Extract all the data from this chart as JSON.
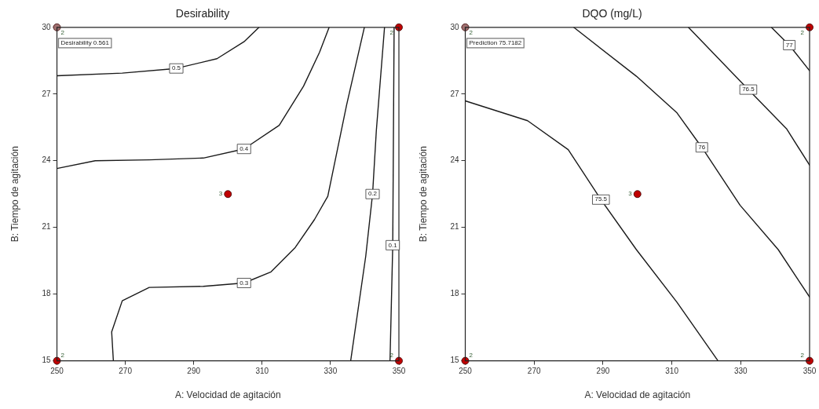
{
  "chart_data": [
    {
      "type": "line",
      "title": "Desirability",
      "xlabel": "A: Velocidad de agitación",
      "ylabel": "B: Tiempo de agitación",
      "xlim": [
        250,
        350
      ],
      "xticks": [
        250,
        270,
        290,
        310,
        330,
        350
      ],
      "ylim": [
        15,
        30
      ],
      "yticks": [
        15,
        18,
        21,
        24,
        27,
        30
      ],
      "grid": false,
      "legend": false,
      "line_style": "solid",
      "series": [
        {
          "name": "0.5",
          "color": "#1a1a1a",
          "x": [
            250,
            269.1,
            284.9,
            296.8,
            304.7,
            309.1
          ],
          "values": [
            27.82,
            27.94,
            28.15,
            28.59,
            29.35,
            30
          ]
        },
        {
          "name": "0.4",
          "color": "#1a1a1a",
          "x": [
            250,
            261.2,
            277,
            292.8,
            304.7,
            315,
            322.1,
            326.8,
            329.6
          ],
          "values": [
            23.65,
            24.0,
            24.04,
            24.12,
            24.53,
            25.59,
            27.35,
            28.88,
            30
          ]
        },
        {
          "name": "0.3",
          "color": "#1a1a1a",
          "x": [
            266.5,
            266.0,
            269.1,
            277,
            292.8,
            304.7,
            312.6,
            319.7,
            325.3,
            329.2,
            334.7,
            339.9
          ],
          "values": [
            15,
            16.3,
            17.7,
            18.3,
            18.35,
            18.5,
            19.0,
            20.1,
            21.35,
            22.4,
            26.5,
            30
          ]
        },
        {
          "name": "0.2",
          "color": "#1a1a1a",
          "x": [
            335.9,
            340.3,
            342.3,
            343.4,
            345.8
          ],
          "values": [
            15,
            19.7,
            22.5,
            25.35,
            30
          ]
        },
        {
          "name": "0.1",
          "color": "#1a1a1a",
          "x": [
            347.4,
            348.2,
            348.6
          ],
          "values": [
            15,
            20.2,
            30
          ]
        },
        {
          "type": "scatter",
          "marker": "circle",
          "x": [
            250,
            250,
            350,
            350,
            300
          ],
          "values": [
            30,
            15,
            15,
            30,
            22.5
          ],
          "colors": [
            "#a07070",
            "#c00000",
            "#c00000",
            "#c00000",
            "#c00000"
          ]
        }
      ],
      "annotations": [
        {
          "text": "2",
          "x": 250,
          "y": 30
        },
        {
          "text": "2",
          "x": 250,
          "y": 15
        },
        {
          "text": "2",
          "x": 350,
          "y": 15
        },
        {
          "text": "2",
          "x": 350,
          "y": 30
        },
        {
          "text": "3",
          "x": 300,
          "y": 22.5
        },
        "Desirability 0.561"
      ]
    },
    {
      "type": "line",
      "title": "DQO (mg/L)",
      "xlabel": "A: Velocidad de agitación",
      "ylabel": "B: Tiempo de agitación",
      "xlim": [
        250,
        350
      ],
      "xticks": [
        250,
        270,
        290,
        310,
        330,
        350
      ],
      "ylim": [
        15,
        30
      ],
      "yticks": [
        15,
        18,
        21,
        24,
        27,
        30
      ],
      "grid": false,
      "legend": false,
      "line_style": "solid",
      "series": [
        {
          "name": "75.5",
          "color": "#1a1a1a",
          "x": [
            250,
            268.1,
            279.9,
            289.4,
            299.7,
            311.5,
            323.4
          ],
          "values": [
            26.69,
            25.8,
            24.5,
            22.25,
            20.0,
            17.63,
            15
          ]
        },
        {
          "name": "76",
          "color": "#1a1a1a",
          "x": [
            281.5,
            299.7,
            311.5,
            318.7,
            329.8,
            340.9,
            350
          ],
          "values": [
            30,
            27.8,
            26.15,
            24.6,
            22.0,
            20.0,
            17.87
          ]
        },
        {
          "name": "76.5",
          "color": "#1a1a1a",
          "x": [
            314.8,
            332.2,
            343.3,
            350
          ],
          "values": [
            30,
            27.2,
            25.44,
            23.8
          ]
        },
        {
          "name": "77",
          "color": "#1a1a1a",
          "x": [
            338.9,
            344.1,
            350
          ],
          "values": [
            30,
            29.2,
            28.05
          ]
        },
        {
          "type": "scatter",
          "marker": "circle",
          "x": [
            250,
            250,
            350,
            350,
            300
          ],
          "values": [
            30,
            15,
            15,
            30,
            22.5
          ],
          "colors": [
            "#a07070",
            "#c00000",
            "#c00000",
            "#c00000",
            "#c00000"
          ]
        }
      ],
      "annotations": [
        {
          "text": "2",
          "x": 250,
          "y": 30
        },
        {
          "text": "2",
          "x": 250,
          "y": 15
        },
        {
          "text": "2",
          "x": 350,
          "y": 15
        },
        {
          "text": "2",
          "x": 350,
          "y": 30
        },
        {
          "text": "3",
          "x": 300,
          "y": 22.5
        },
        "Prediction 75.7182"
      ]
    }
  ]
}
